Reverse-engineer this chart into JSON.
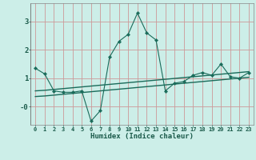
{
  "xlabel": "Humidex (Indice chaleur)",
  "bg_color": "#cceee8",
  "grid_color": "#cc9999",
  "line_color": "#1a6b5a",
  "xlim": [
    -0.5,
    23.5
  ],
  "ylim": [
    -0.65,
    3.65
  ],
  "yticks": [
    3,
    2,
    1,
    0
  ],
  "ytick_labels": [
    "3",
    "2",
    "1",
    "-0"
  ],
  "xticks": [
    0,
    1,
    2,
    3,
    4,
    5,
    6,
    7,
    8,
    9,
    10,
    11,
    12,
    13,
    14,
    15,
    16,
    17,
    18,
    19,
    20,
    21,
    22,
    23
  ],
  "line1_x": [
    0,
    1,
    2,
    3,
    4,
    5,
    6,
    7,
    8,
    9,
    10,
    11,
    12,
    13,
    14,
    15,
    16,
    17,
    18,
    19,
    20,
    21,
    22,
    23
  ],
  "line1_y": [
    1.35,
    1.15,
    0.55,
    0.5,
    0.5,
    0.55,
    -0.52,
    -0.15,
    1.75,
    2.3,
    2.55,
    3.3,
    2.6,
    2.35,
    0.55,
    0.82,
    0.88,
    1.1,
    1.2,
    1.1,
    1.5,
    1.05,
    1.0,
    1.2
  ],
  "line2_x": [
    0,
    1,
    2,
    3,
    4,
    5,
    6,
    7,
    8,
    9,
    10,
    11,
    12,
    13,
    14,
    15,
    16,
    17,
    18,
    19,
    20,
    21,
    22,
    23
  ],
  "line2_y": [
    0.55,
    0.57,
    0.6,
    0.63,
    0.66,
    0.69,
    0.72,
    0.75,
    0.78,
    0.81,
    0.84,
    0.87,
    0.9,
    0.93,
    0.96,
    0.99,
    1.02,
    1.05,
    1.08,
    1.11,
    1.14,
    1.17,
    1.2,
    1.23
  ],
  "line3_x": [
    0,
    1,
    2,
    3,
    4,
    5,
    6,
    7,
    8,
    9,
    10,
    11,
    12,
    13,
    14,
    15,
    16,
    17,
    18,
    19,
    20,
    21,
    22,
    23
  ],
  "line3_y": [
    0.35,
    0.37,
    0.4,
    0.43,
    0.46,
    0.49,
    0.52,
    0.55,
    0.58,
    0.61,
    0.64,
    0.67,
    0.7,
    0.73,
    0.76,
    0.79,
    0.82,
    0.85,
    0.88,
    0.91,
    0.94,
    0.97,
    1.0,
    1.03
  ]
}
